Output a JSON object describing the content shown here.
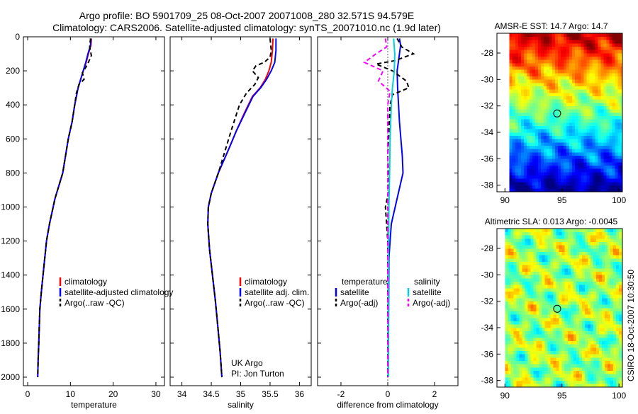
{
  "header": {
    "line1": "Argo profile: BO 5901709_25 08-Oct-2007 20071008_280 32.571S 94.579E",
    "line2": "Climatology: CARS2006. Satellite-adjusted climatology: synTS_20071010.nc (1.9d later)"
  },
  "chart_data": [
    {
      "type": "line",
      "id": "temperature",
      "xlabel": "temperature",
      "ylabel": "",
      "xlim": [
        -1,
        32
      ],
      "ylim": [
        2050,
        0
      ],
      "xticks": [
        0,
        10,
        20,
        30
      ],
      "yticks": [
        0,
        200,
        400,
        600,
        800,
        1000,
        1200,
        1400,
        1600,
        1800,
        2000
      ],
      "legend": [
        "climatology",
        "satellite-adjusted climatology",
        "Argo(..raw -QC)"
      ],
      "series": [
        {
          "name": "climatology",
          "color": "#ff0000",
          "dash": "",
          "x": [
            14.9,
            14.8,
            14.2,
            13.7,
            13.0,
            12.4,
            11.8,
            11.0,
            10.4,
            9.5,
            8.2,
            6.4,
            5.1,
            4.4,
            3.6,
            3.2,
            2.85,
            2.6,
            2.45,
            2.35
          ],
          "y": [
            10,
            50,
            100,
            150,
            200,
            250,
            300,
            400,
            500,
            600,
            800,
            950,
            1100,
            1200,
            1400,
            1500,
            1600,
            1800,
            1900,
            2000
          ]
        },
        {
          "name": "satellite-adjusted climatology",
          "color": "#0000ff",
          "dash": "",
          "x": [
            14.8,
            14.7,
            14.1,
            13.6,
            13.0,
            12.4,
            11.8,
            11.0,
            10.4,
            9.5,
            8.2,
            6.4,
            5.1,
            4.4,
            3.6,
            3.2,
            2.85,
            2.6,
            2.45,
            2.35
          ],
          "y": [
            10,
            50,
            100,
            150,
            200,
            250,
            300,
            400,
            500,
            600,
            800,
            950,
            1100,
            1200,
            1400,
            1500,
            1600,
            1800,
            1900,
            2000
          ]
        },
        {
          "name": "Argo(..raw -QC)",
          "color": "#000000",
          "dash": "6,4",
          "x": [
            14.7,
            14.5,
            14.9,
            14.2,
            13.6,
            12.8,
            13.2,
            12.0,
            11.4,
            11.0,
            10.4,
            9.5,
            8.2,
            6.4,
            5.1,
            4.4,
            3.6,
            3.2,
            2.85,
            2.6,
            2.45,
            2.35
          ],
          "y": [
            10,
            60,
            110,
            150,
            180,
            210,
            250,
            280,
            330,
            400,
            500,
            600,
            800,
            950,
            1100,
            1200,
            1400,
            1500,
            1600,
            1800,
            1900,
            2000
          ]
        }
      ]
    },
    {
      "type": "line",
      "id": "salinity",
      "xlabel": "salinity",
      "xlim": [
        33.8,
        36.2
      ],
      "ylim": [
        2050,
        0
      ],
      "xticks": [
        34,
        34.5,
        35,
        35.5,
        36
      ],
      "legend": [
        "climatology",
        "satellite adj. clim.",
        "Argo(..raw -QC)"
      ],
      "annotation": {
        "line1": "UK Argo",
        "line2": "PI: Jon Turton"
      },
      "series": [
        {
          "name": "climatology",
          "color": "#ff0000",
          "dash": "",
          "x": [
            35.55,
            35.54,
            35.52,
            35.48,
            35.42,
            35.33,
            35.2,
            35.06,
            34.93,
            34.81,
            34.62,
            34.5,
            34.45,
            34.44,
            34.47,
            34.52,
            34.57,
            34.61,
            34.65,
            34.68
          ],
          "y": [
            10,
            80,
            150,
            200,
            250,
            300,
            350,
            450,
            550,
            650,
            800,
            920,
            1000,
            1100,
            1250,
            1400,
            1550,
            1700,
            1850,
            2000
          ]
        },
        {
          "name": "satellite adj. clim.",
          "color": "#0000ff",
          "dash": "",
          "x": [
            35.6,
            35.6,
            35.58,
            35.52,
            35.44,
            35.34,
            35.21,
            35.07,
            34.93,
            34.81,
            34.62,
            34.5,
            34.45,
            34.44,
            34.47,
            34.52,
            34.57,
            34.61,
            34.65,
            34.68
          ],
          "y": [
            10,
            80,
            150,
            200,
            250,
            300,
            350,
            450,
            550,
            650,
            800,
            920,
            1000,
            1100,
            1250,
            1400,
            1550,
            1700,
            1850,
            2000
          ]
        },
        {
          "name": "Argo(..raw -QC)",
          "color": "#000000",
          "dash": "6,4",
          "x": [
            35.5,
            35.52,
            35.5,
            35.4,
            35.26,
            35.2,
            35.3,
            35.24,
            35.1,
            34.98,
            34.84,
            34.62,
            34.5,
            34.45,
            34.44,
            34.47,
            34.52,
            34.57,
            34.61,
            34.65,
            34.68
          ],
          "y": [
            10,
            80,
            120,
            150,
            170,
            200,
            240,
            280,
            330,
            400,
            550,
            800,
            920,
            1000,
            1100,
            1250,
            1400,
            1550,
            1700,
            1850,
            2000
          ]
        }
      ]
    },
    {
      "type": "line",
      "id": "difference",
      "xlabel": "difference from climatology",
      "xlim": [
        -3,
        3
      ],
      "ylim": [
        2050,
        0
      ],
      "xticks": [
        -2,
        0,
        2
      ],
      "legend_groups": [
        {
          "heading": "temperature",
          "items": [
            "satellite",
            "Argo(-adj)"
          ]
        },
        {
          "heading": "salinity",
          "items": [
            "satellite",
            "Argo(-adj)"
          ]
        }
      ],
      "series": [
        {
          "name": "temperature satellite",
          "color": "#0000ff",
          "dash": "",
          "x": [
            0.5,
            0.55,
            0.5,
            0.45,
            0.4,
            0.42,
            0.5,
            0.62,
            0.65,
            0.4,
            0.15,
            0.05,
            0.02
          ],
          "y": [
            10,
            50,
            100,
            150,
            200,
            300,
            500,
            700,
            800,
            950,
            1100,
            1300,
            2000
          ]
        },
        {
          "name": "temperature Argo(-adj)",
          "color": "#000000",
          "dash": "6,4",
          "x": [
            0.4,
            0.6,
            1.1,
            0.3,
            -0.5,
            0.2,
            0.8,
            0.9,
            0.2,
            0.1,
            0.0,
            0.05,
            -0.1,
            0.0,
            0.0
          ],
          "y": [
            10,
            60,
            100,
            140,
            160,
            200,
            260,
            300,
            340,
            400,
            700,
            900,
            1000,
            1200,
            2000
          ]
        },
        {
          "name": "salinity satellite",
          "color": "#00d0e0",
          "dash": "",
          "x": [
            0.25,
            0.3,
            0.28,
            0.2,
            0.15,
            0.1,
            0.08,
            0.05,
            0.03,
            0.02
          ],
          "y": [
            10,
            100,
            200,
            300,
            400,
            600,
            800,
            1000,
            1300,
            2000
          ]
        },
        {
          "name": "salinity Argo(-adj)",
          "color": "#ff00ff",
          "dash": "6,4",
          "x": [
            -0.1,
            -0.05,
            -0.5,
            -1.0,
            -0.2,
            -0.4,
            0.1,
            0.0,
            0.0,
            0.0
          ],
          "y": [
            10,
            60,
            100,
            150,
            200,
            260,
            320,
            400,
            600,
            2000
          ]
        }
      ]
    },
    {
      "type": "heatmap",
      "id": "sst",
      "title": "AMSR-E SST: 14.7  Argo: 14.7",
      "xlim": [
        89.3,
        100.3
      ],
      "ylim": [
        -38.5,
        -26.5
      ],
      "xticks": [
        90,
        95,
        100
      ],
      "yticks": [
        -28,
        -30,
        -32,
        -34,
        -36,
        -38
      ],
      "colorscale": "jet",
      "valid_x_min": 90.4,
      "marker": {
        "lon": 94.58,
        "lat": -32.57
      }
    },
    {
      "type": "heatmap",
      "id": "sla",
      "title": "Altimetric SLA: 0.013  Argo: -0.0045",
      "xlim": [
        89.3,
        100.3
      ],
      "ylim": [
        -38.5,
        -26.5
      ],
      "xticks": [
        90,
        95,
        100
      ],
      "yticks": [
        -28,
        -30,
        -32,
        -34,
        -36,
        -38
      ],
      "colorscale": "jet",
      "valid_x_min": 90.0,
      "marker": {
        "lon": 94.58,
        "lat": -32.57
      }
    }
  ],
  "side_label": "CSIRO 18-Oct-2007 10:30:50"
}
